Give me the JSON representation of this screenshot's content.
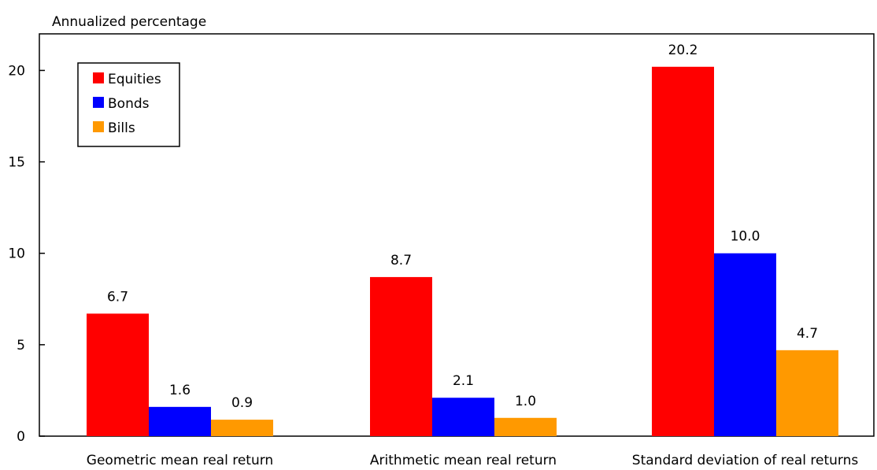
{
  "chart_data": {
    "type": "bar",
    "title": "",
    "ylabel": "Annualized percentage",
    "xlabel": "",
    "ylim": [
      0,
      22
    ],
    "yticks": [
      0,
      5,
      10,
      15,
      20
    ],
    "grid": false,
    "legend_position": "top-left",
    "categories": [
      "Geometric mean real return",
      "Arithmetic mean real return",
      "Standard deviation of real returns"
    ],
    "series": [
      {
        "name": "Equities",
        "color": "#ff0000",
        "values": [
          6.7,
          8.7,
          20.2
        ],
        "labels": [
          "6.7",
          "8.7",
          "20.2"
        ]
      },
      {
        "name": "Bonds",
        "color": "#0000ff",
        "values": [
          1.6,
          2.1,
          10.0
        ],
        "labels": [
          "1.6",
          "2.1",
          "10.0"
        ]
      },
      {
        "name": "Bills",
        "color": "#ff9900",
        "values": [
          0.9,
          1.0,
          4.7
        ],
        "labels": [
          "0.9",
          "1.0",
          "4.7"
        ]
      }
    ]
  }
}
